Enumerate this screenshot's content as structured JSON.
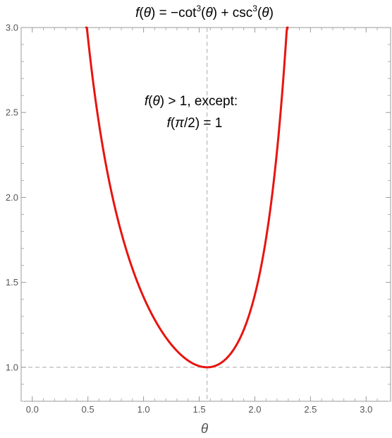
{
  "chart_data": {
    "type": "line",
    "title": {
      "fn": "f",
      "lparen": "(",
      "var": "θ",
      "rparen_eq": ") = −cot",
      "exp1": "3",
      "mid_open": "(",
      "var2": "θ",
      "mid_close": ") + csc",
      "exp2": "3",
      "end_open": "(",
      "var3": "θ",
      "end_close": ")"
    },
    "xlabel": "θ",
    "ylabel": "",
    "xlim": [
      -0.1,
      3.22
    ],
    "ylim": [
      0.8,
      3.0
    ],
    "x_ticks": [
      0.0,
      0.5,
      1.0,
      1.5,
      2.0,
      2.5,
      3.0
    ],
    "x_tick_labels": [
      "0.0",
      "0.5",
      "1.0",
      "1.5",
      "2.0",
      "2.5",
      "3.0"
    ],
    "y_ticks": [
      1.0,
      1.5,
      2.0,
      2.5,
      3.0
    ],
    "y_tick_labels": [
      "1.0",
      "1.5",
      "2.0",
      "2.5",
      "3.0"
    ],
    "series": [
      {
        "function": "-cot^3(x) + csc^3(x)",
        "x_range": [
          0.485,
          2.295
        ],
        "color": "#e8140f"
      }
    ],
    "reference_lines": {
      "vertical_x": 1.5708,
      "horizontal_y": 1.0,
      "color": "#b9b9b9",
      "style": "dashed"
    },
    "annotation": {
      "line1": {
        "fn": "f",
        "open": "(",
        "var": "θ",
        "close": ") > 1, except:"
      },
      "line2": {
        "fn": "f",
        "open": "(",
        "var": "π",
        "close": "/2) = 1"
      }
    },
    "grid": false,
    "legend": "none"
  }
}
